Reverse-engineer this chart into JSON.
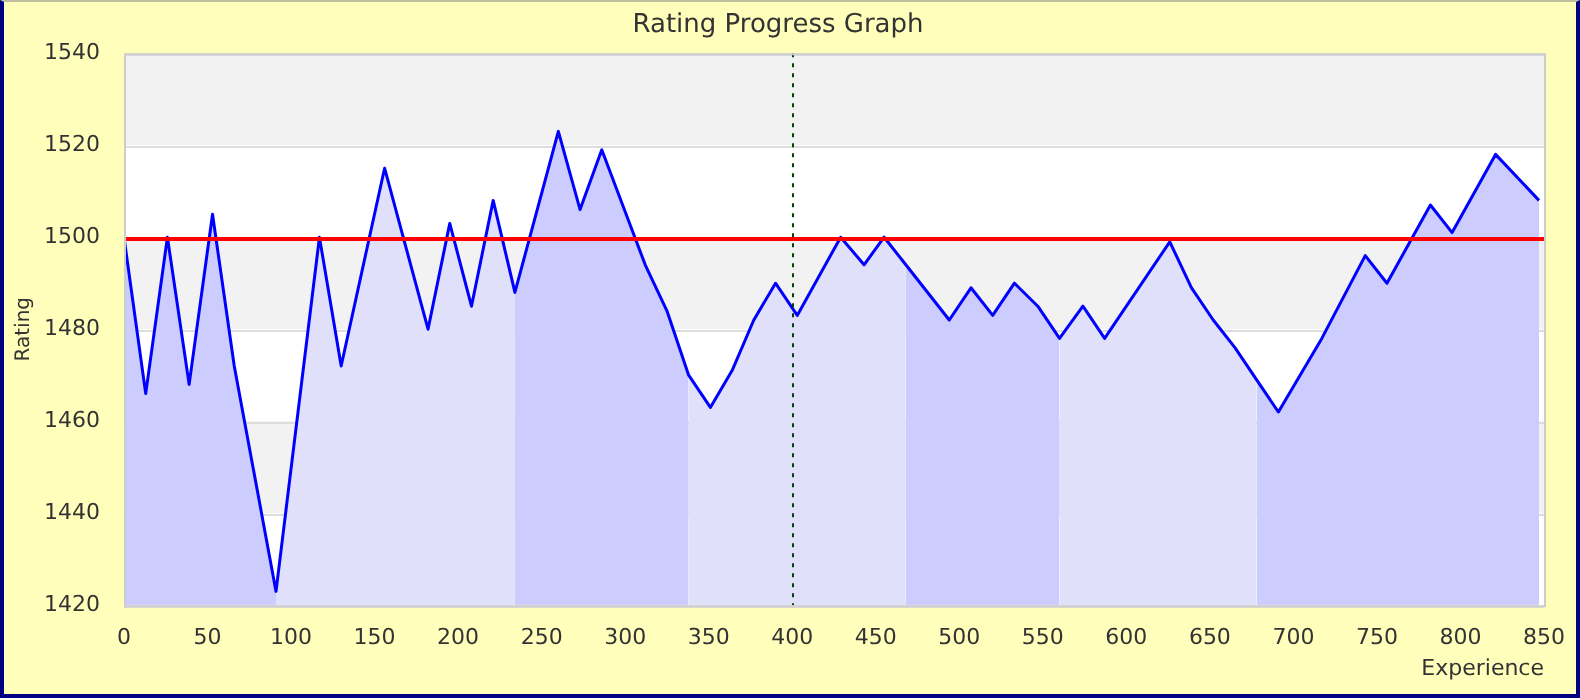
{
  "chart_data": {
    "type": "area",
    "title": "Rating Progress Graph",
    "xlabel": "Experience",
    "ylabel": "Rating",
    "x": [
      0,
      13,
      26,
      39,
      53,
      66,
      91,
      117,
      130,
      156,
      182,
      195,
      208,
      221,
      234,
      260,
      273,
      286,
      312,
      325,
      338,
      351,
      364,
      377,
      390,
      403,
      429,
      443,
      455,
      468,
      494,
      507,
      520,
      533,
      547,
      560,
      574,
      587,
      626,
      639,
      652,
      665,
      678,
      691,
      717,
      743,
      756,
      782,
      795,
      821,
      847
    ],
    "series": [
      {
        "type": "line",
        "color": "#0000ff",
        "values": [
          1500,
          1466,
          1500,
          1468,
          1505,
          1472,
          1423,
          1500,
          1472,
          1515,
          1480,
          1503,
          1485,
          1508,
          1488,
          1523,
          1506,
          1519,
          1494,
          1484,
          1470,
          1463,
          1471,
          1482,
          1490,
          1483,
          1500,
          1494,
          1500,
          1494,
          1482,
          1489,
          1483,
          1490,
          1485,
          1478,
          1485,
          1478,
          1499,
          1489,
          1482,
          1476,
          1469,
          1462,
          1478,
          1496,
          1490,
          1507,
          1501,
          1518,
          1508
        ]
      },
      {
        "color": "#ccccff",
        "x": [
          0,
          13,
          26,
          39,
          53,
          66,
          91
        ],
        "values": [
          1500,
          1466,
          1500,
          1468,
          1505,
          1472,
          1423
        ]
      },
      {
        "color": "#e0e0fb",
        "x": [
          91,
          117,
          130,
          156,
          182,
          195,
          208,
          221,
          234
        ],
        "values": [
          1423,
          1500,
          1472,
          1515,
          1480,
          1503,
          1485,
          1508,
          1488
        ]
      },
      {
        "color": "#ccccff",
        "x": [
          234,
          260,
          273,
          286,
          312,
          325,
          338
        ],
        "values": [
          1488,
          1523,
          1506,
          1519,
          1494,
          1484,
          1470
        ]
      },
      {
        "color": "#e0e0fb",
        "x": [
          338,
          351,
          364,
          377,
          390,
          403,
          429,
          443,
          455,
          468
        ],
        "values": [
          1470,
          1463,
          1471,
          1482,
          1490,
          1483,
          1500,
          1494,
          1500,
          1494
        ]
      },
      {
        "color": "#ccccff",
        "x": [
          468,
          494,
          507,
          520,
          533,
          547,
          560
        ],
        "values": [
          1494,
          1482,
          1489,
          1483,
          1490,
          1485,
          1478
        ]
      },
      {
        "color": "#e0e0fb",
        "x": [
          560,
          574,
          587,
          626,
          639,
          652,
          665,
          678
        ],
        "values": [
          1478,
          1485,
          1478,
          1499,
          1489,
          1482,
          1476,
          1469
        ]
      },
      {
        "color": "#ccccff",
        "x": [
          678,
          691,
          717,
          743,
          756,
          782,
          795,
          821,
          847
        ],
        "values": [
          1469,
          1462,
          1478,
          1496,
          1490,
          1507,
          1501,
          1518,
          1508
        ]
      }
    ],
    "xlim": [
      0,
      850
    ],
    "xticks": [
      0,
      50,
      100,
      150,
      200,
      250,
      300,
      350,
      400,
      450,
      500,
      550,
      600,
      650,
      700,
      750,
      800,
      850
    ],
    "ylim": [
      1420,
      1540
    ],
    "yticks": [
      1420,
      1440,
      1460,
      1480,
      1500,
      1520,
      1540
    ],
    "grid": "y",
    "legend": false,
    "marker": "none",
    "line_style": "solid",
    "ref_lines": [
      {
        "axis": "y",
        "value": 1500,
        "color": "#ff0000",
        "line_style": "solid"
      },
      {
        "axis": "x",
        "value": 400,
        "color": "#004400",
        "line_style": "dotted"
      }
    ]
  }
}
